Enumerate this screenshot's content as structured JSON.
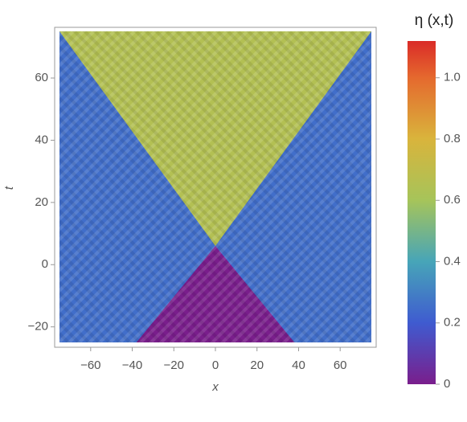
{
  "chart_data": {
    "type": "density",
    "x_label": "x",
    "y_label": "t",
    "colorbar_title": "η (x,t)",
    "xlim": [
      -75,
      75
    ],
    "ylim": [
      -25,
      75
    ],
    "xticks": [
      {
        "value": -60,
        "label": "−60"
      },
      {
        "value": -40,
        "label": "−40"
      },
      {
        "value": -20,
        "label": "−20"
      },
      0,
      20,
      40,
      60
    ],
    "yticks": [
      {
        "value": -20,
        "label": "−20"
      },
      0,
      20,
      40,
      60
    ],
    "clim": [
      0,
      1.12
    ],
    "cticks": [
      0,
      0.2,
      0.4,
      0.6,
      0.8,
      {
        "value": 1,
        "label": "1.0"
      }
    ],
    "colormap": [
      [
        0,
        "#7a1e8c"
      ],
      [
        0.2,
        "#3f5bd0"
      ],
      [
        0.4,
        "#47a5b8"
      ],
      [
        0.6,
        "#a6c45a"
      ],
      [
        0.8,
        "#d9b43c"
      ],
      [
        1.0,
        "#e5692e"
      ],
      [
        1.12,
        "#da2b28"
      ]
    ],
    "regions": [
      {
        "points": [
          [
            -75,
            -25
          ],
          [
            75,
            -25
          ],
          [
            75,
            75
          ],
          [
            -75,
            75
          ]
        ],
        "value": 0.25
      },
      {
        "points": [
          [
            0,
            6
          ],
          [
            75,
            75
          ],
          [
            -75,
            75
          ]
        ],
        "value": 0.65
      },
      {
        "points": [
          [
            -38,
            -25
          ],
          [
            38,
            -25
          ],
          [
            0,
            6
          ]
        ],
        "value": 0
      }
    ]
  }
}
